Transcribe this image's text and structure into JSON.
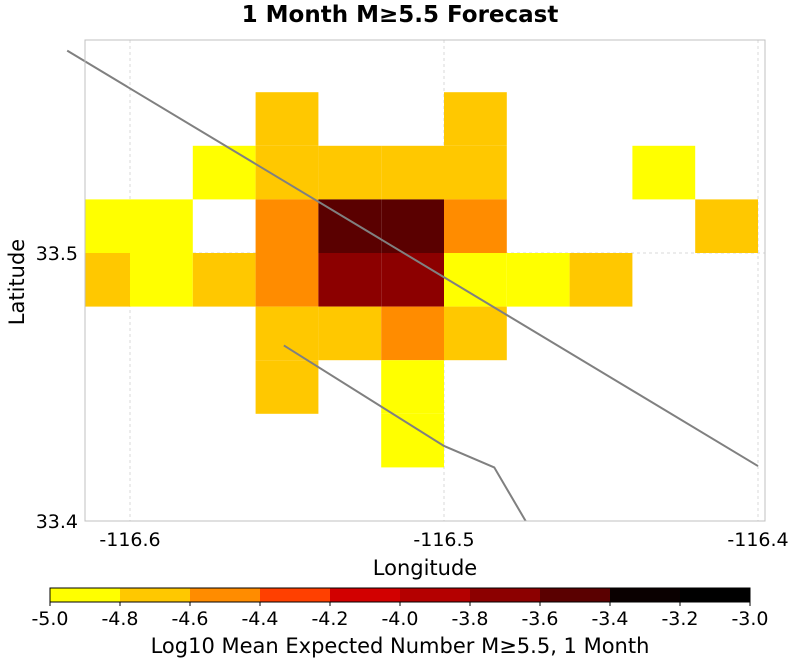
{
  "chart_data": {
    "type": "heatmap",
    "title": "1 Month M≥5.5 Forecast",
    "xlabel": "Longitude",
    "ylabel": "Latitude",
    "xlim": [
      -116.62,
      -116.4
    ],
    "ylim": [
      33.4,
      33.5
    ],
    "x_ticks": [
      {
        "value": -116.6,
        "label": "-116.6"
      },
      {
        "value": -116.5,
        "label": "-116.5"
      },
      {
        "value": -116.4,
        "label": "-116.4"
      }
    ],
    "y_ticks": [
      {
        "value": 33.4,
        "label": "33.4"
      },
      {
        "value": 33.5,
        "label": "33.5"
      }
    ],
    "grid": true,
    "cell_size": [
      0.02,
      0.02
    ],
    "cells": [
      {
        "x": -116.55,
        "y": 33.55,
        "value": -4.7
      },
      {
        "x": -116.49,
        "y": 33.55,
        "value": -4.7
      },
      {
        "x": -116.57,
        "y": 33.53,
        "value": -4.9
      },
      {
        "x": -116.55,
        "y": 33.53,
        "value": -4.7
      },
      {
        "x": -116.53,
        "y": 33.53,
        "value": -4.7
      },
      {
        "x": -116.51,
        "y": 33.53,
        "value": -4.7
      },
      {
        "x": -116.49,
        "y": 33.53,
        "value": -4.7
      },
      {
        "x": -116.43,
        "y": 33.53,
        "value": -4.9
      },
      {
        "x": -116.61,
        "y": 33.51,
        "value": -4.9
      },
      {
        "x": -116.59,
        "y": 33.51,
        "value": -4.9
      },
      {
        "x": -116.55,
        "y": 33.51,
        "value": -4.5
      },
      {
        "x": -116.53,
        "y": 33.51,
        "value": -3.5
      },
      {
        "x": -116.51,
        "y": 33.51,
        "value": -3.5
      },
      {
        "x": -116.49,
        "y": 33.51,
        "value": -4.5
      },
      {
        "x": -116.41,
        "y": 33.51,
        "value": -4.7
      },
      {
        "x": -116.61,
        "y": 33.49,
        "value": -4.7
      },
      {
        "x": -116.59,
        "y": 33.49,
        "value": -4.9
      },
      {
        "x": -116.57,
        "y": 33.49,
        "value": -4.7
      },
      {
        "x": -116.55,
        "y": 33.49,
        "value": -4.5
      },
      {
        "x": -116.53,
        "y": 33.49,
        "value": -3.7
      },
      {
        "x": -116.51,
        "y": 33.49,
        "value": -3.7
      },
      {
        "x": -116.49,
        "y": 33.49,
        "value": -4.9
      },
      {
        "x": -116.47,
        "y": 33.49,
        "value": -4.9
      },
      {
        "x": -116.45,
        "y": 33.49,
        "value": -4.7
      },
      {
        "x": -116.55,
        "y": 33.47,
        "value": -4.7
      },
      {
        "x": -116.53,
        "y": 33.47,
        "value": -4.7
      },
      {
        "x": -116.51,
        "y": 33.47,
        "value": -4.5
      },
      {
        "x": -116.49,
        "y": 33.47,
        "value": -4.7
      },
      {
        "x": -116.55,
        "y": 33.45,
        "value": -4.7
      },
      {
        "x": -116.51,
        "y": 33.45,
        "value": -4.9
      },
      {
        "x": -116.51,
        "y": 33.43,
        "value": -4.9
      }
    ],
    "fault_lines": [
      {
        "points": [
          [
            -116.62,
            33.5755
          ],
          [
            -116.4,
            33.4205
          ]
        ]
      },
      {
        "points": [
          [
            -116.551,
            33.4655
          ],
          [
            -116.5,
            33.428
          ],
          [
            -116.484,
            33.42
          ],
          [
            -116.474,
            33.4
          ]
        ]
      }
    ],
    "colorbar": {
      "label": "Log10 Mean Expected Number M≥5.5, 1 Month",
      "range": [
        -5.0,
        -3.0
      ],
      "ticks": [
        "-5.0",
        "-4.8",
        "-4.6",
        "-4.4",
        "-4.2",
        "-4.0",
        "-3.8",
        "-3.6",
        "-3.4",
        "-3.2",
        "-3.0"
      ],
      "bins": [
        {
          "from": -5.0,
          "to": -4.8,
          "color": "#ffff00"
        },
        {
          "from": -4.8,
          "to": -4.6,
          "color": "#ffc800"
        },
        {
          "from": -4.6,
          "to": -4.4,
          "color": "#ff8c00"
        },
        {
          "from": -4.4,
          "to": -4.2,
          "color": "#ff4000"
        },
        {
          "from": -4.2,
          "to": -4.0,
          "color": "#d20000"
        },
        {
          "from": -4.0,
          "to": -3.8,
          "color": "#b40000"
        },
        {
          "from": -3.8,
          "to": -3.6,
          "color": "#8c0000"
        },
        {
          "from": -3.6,
          "to": -3.4,
          "color": "#5a0000"
        },
        {
          "from": -3.4,
          "to": -3.2,
          "color": "#0a0000"
        },
        {
          "from": -3.2,
          "to": -3.0,
          "color": "#000000"
        }
      ]
    }
  }
}
